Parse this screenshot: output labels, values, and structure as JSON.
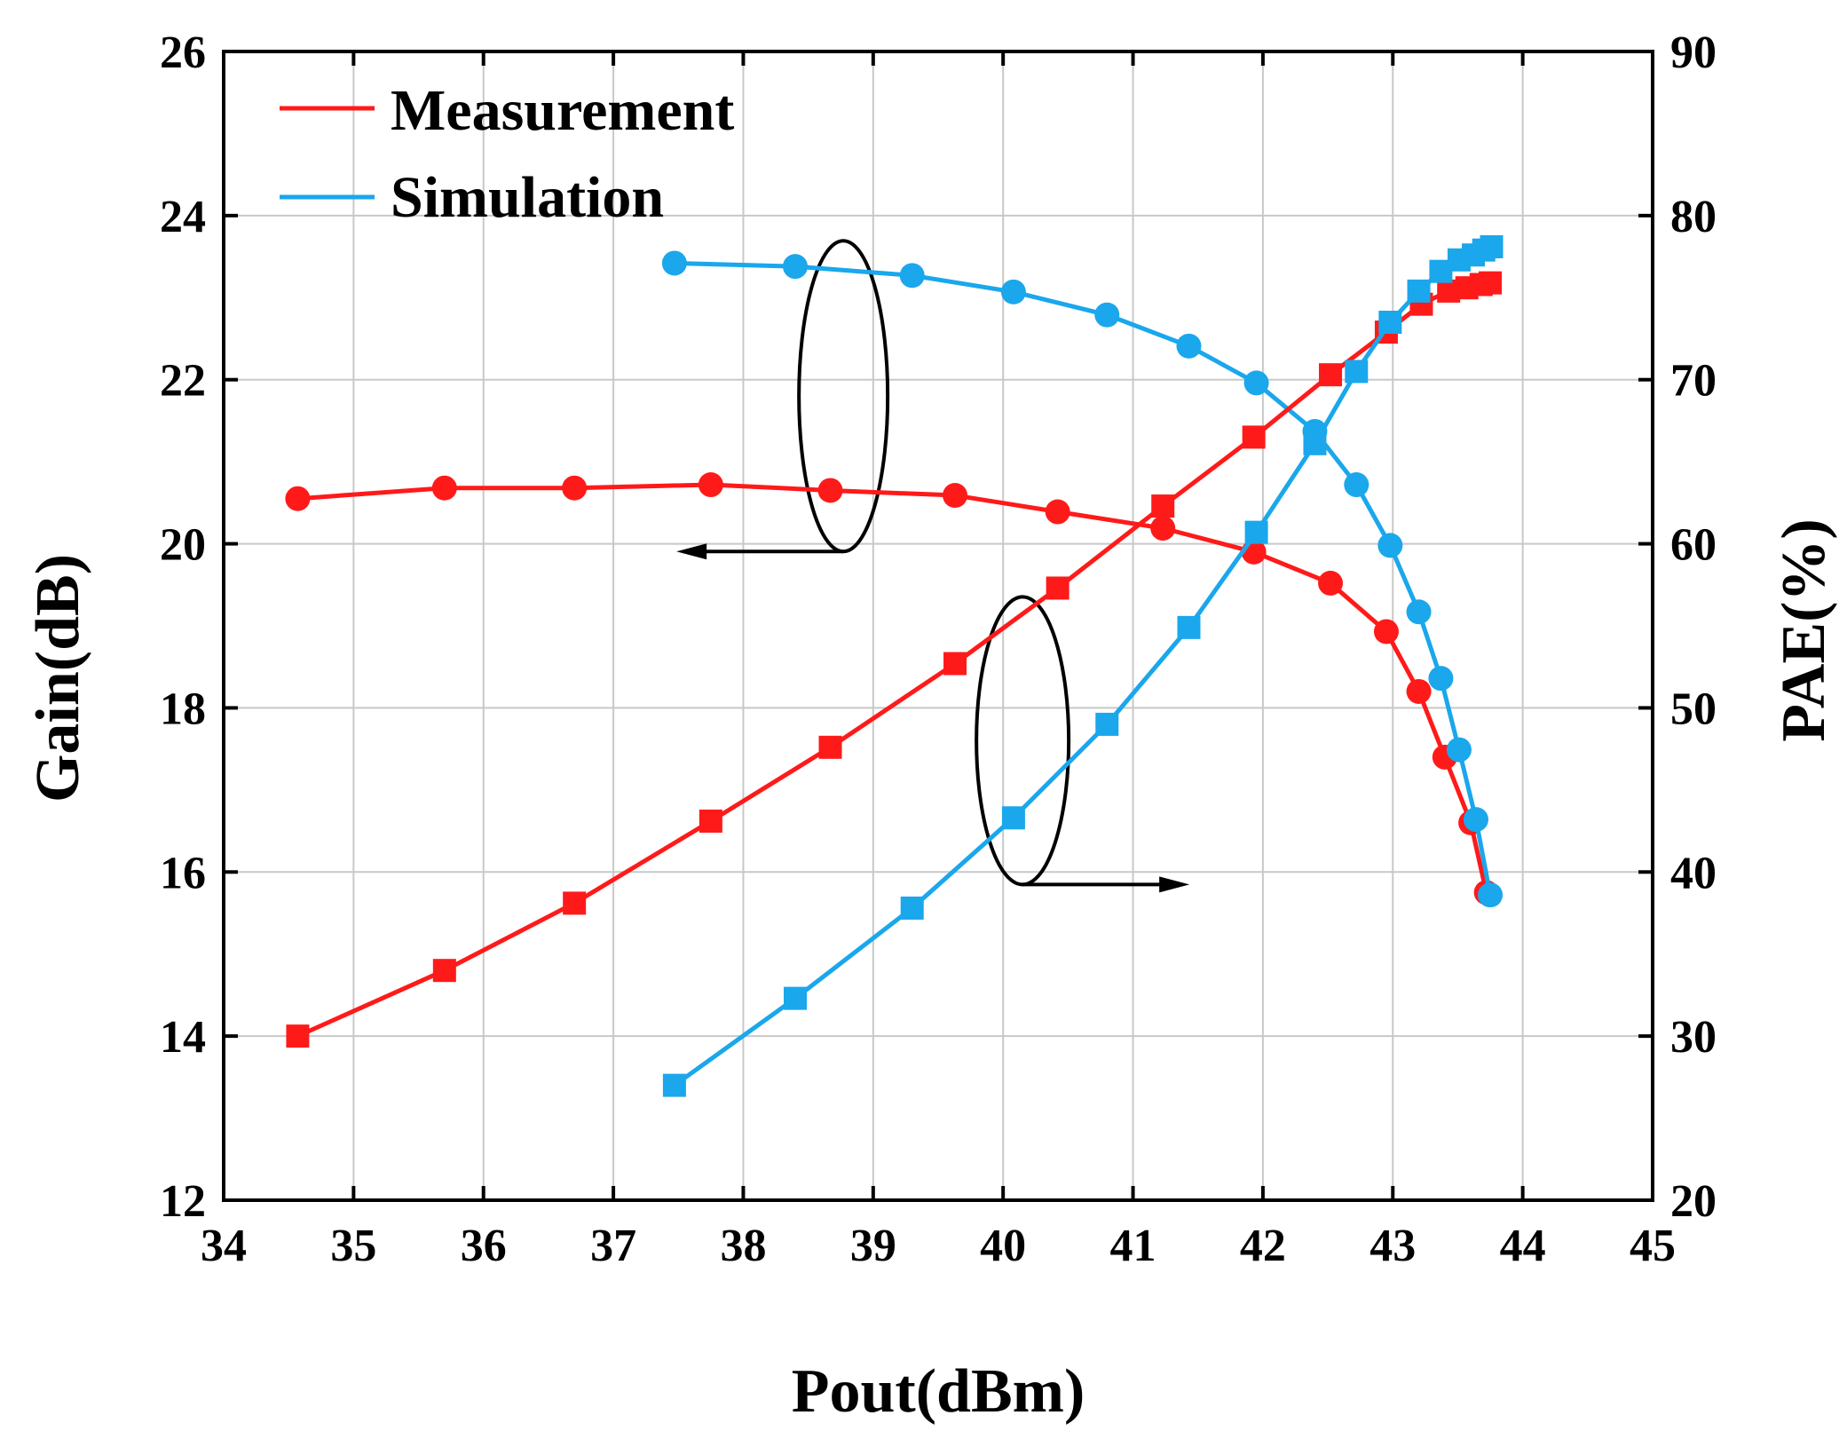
{
  "chart_data": {
    "type": "line",
    "title": "",
    "xlabel": "Pout(dBm)",
    "ylabel": "Gain(dB)",
    "y2label": "PAE(%)",
    "xlim": [
      34,
      45
    ],
    "ylim": [
      12,
      26
    ],
    "y2lim": [
      20,
      90
    ],
    "xticks": [
      "34",
      "35",
      "36",
      "37",
      "38",
      "39",
      "40",
      "41",
      "42",
      "43",
      "44",
      "45"
    ],
    "yticks": [
      "12",
      "14",
      "16",
      "18",
      "20",
      "22",
      "24",
      "26"
    ],
    "y2ticks": [
      "20",
      "30",
      "40",
      "50",
      "60",
      "70",
      "80",
      "90"
    ],
    "grid": true,
    "legend_position": "top-left",
    "legend": [
      {
        "label": "Measurement",
        "color": "#ff1a1a"
      },
      {
        "label": "Simulation",
        "color": "#1aa7ec"
      }
    ],
    "series": [
      {
        "name": "Measurement Gain",
        "axis": "left",
        "marker": "circle",
        "color": "#ff1a1a",
        "x": [
          34.57,
          35.7,
          36.7,
          37.75,
          38.67,
          39.63,
          40.42,
          41.23,
          41.93,
          42.52,
          42.95,
          43.2,
          43.4,
          43.6,
          43.72
        ],
        "y": [
          20.55,
          20.68,
          20.68,
          20.72,
          20.65,
          20.59,
          20.39,
          20.19,
          19.9,
          19.52,
          18.93,
          18.2,
          17.4,
          16.6,
          15.75
        ]
      },
      {
        "name": "Simulation Gain",
        "axis": "left",
        "marker": "circle",
        "color": "#1aa7ec",
        "x": [
          37.47,
          38.4,
          39.3,
          40.08,
          40.8,
          41.43,
          41.95,
          42.4,
          42.72,
          42.98,
          43.2,
          43.37,
          43.51,
          43.64,
          43.75
        ],
        "y": [
          23.42,
          23.38,
          23.27,
          23.07,
          22.79,
          22.41,
          21.96,
          21.37,
          20.72,
          19.98,
          19.17,
          18.36,
          17.49,
          16.64,
          15.72
        ]
      },
      {
        "name": "Measurement PAE",
        "axis": "right",
        "marker": "square",
        "color": "#ff1a1a",
        "x": [
          34.57,
          35.7,
          36.7,
          37.75,
          38.67,
          39.63,
          40.42,
          41.23,
          41.93,
          42.52,
          42.95,
          43.22,
          43.43,
          43.57,
          43.68,
          43.75
        ],
        "y": [
          30,
          34,
          38.1,
          43.1,
          47.6,
          52.7,
          57.3,
          62.3,
          66.5,
          70.3,
          72.9,
          74.6,
          75.4,
          75.6,
          75.8,
          75.9
        ]
      },
      {
        "name": "Simulation PAE",
        "axis": "right",
        "marker": "square",
        "color": "#1aa7ec",
        "x": [
          37.47,
          38.4,
          39.3,
          40.08,
          40.8,
          41.43,
          41.95,
          42.4,
          42.72,
          42.98,
          43.2,
          43.37,
          43.51,
          43.62,
          43.7,
          43.76
        ],
        "y": [
          27,
          32.3,
          37.8,
          43.3,
          49,
          54.9,
          60.7,
          66.1,
          70.5,
          73.5,
          75.4,
          76.6,
          77.3,
          77.6,
          77.9,
          78.1
        ]
      }
    ],
    "annotations": [
      {
        "type": "ellipse-arrow",
        "target_axis": "left",
        "direction": "left",
        "x": 38.77,
        "y": 21.8
      },
      {
        "type": "ellipse-arrow",
        "target_axis": "right",
        "direction": "right",
        "x": 40.15,
        "y": 48
      }
    ]
  }
}
